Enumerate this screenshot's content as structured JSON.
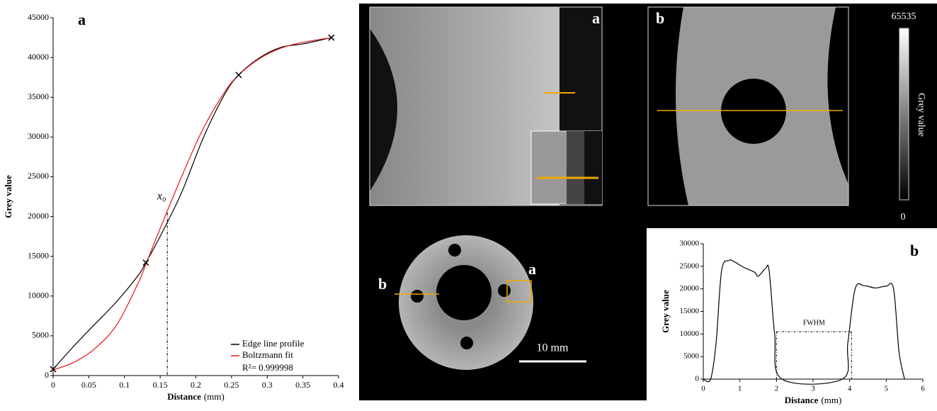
{
  "chart_data": [
    {
      "type": "line",
      "panel_label": "a",
      "xlabel": "Distance",
      "xlabel_unit": "(mm)",
      "ylabel": "Grey value",
      "x": [
        0,
        0.03,
        0.06,
        0.09,
        0.12,
        0.13,
        0.15,
        0.18,
        0.21,
        0.24,
        0.26,
        0.29,
        0.32,
        0.35,
        0.39
      ],
      "series": [
        {
          "name": "Edge line profile",
          "color": "#000000",
          "values": [
            800,
            3800,
            6600,
            9400,
            12700,
            14200,
            17500,
            23000,
            29800,
            35300,
            37800,
            40000,
            41300,
            41700,
            42500
          ]
        },
        {
          "name": "Boltzmann fit",
          "color": "#e8141b",
          "values": [
            700,
            1700,
            3500,
            6500,
            11800,
            14000,
            18500,
            25000,
            31000,
            35600,
            37800,
            39900,
            41200,
            41900,
            42500
          ]
        }
      ],
      "markers": {
        "x": [
          0,
          0.13,
          0.26,
          0.39
        ],
        "values": [
          800,
          14200,
          37800,
          42500
        ]
      },
      "fit_note": "R²= 0.999998",
      "x0_label": "x₀",
      "x0": 0.16,
      "x0_top": 20500,
      "xlim": [
        0,
        0.4
      ],
      "xticks": [
        0,
        0.05,
        0.1,
        0.15,
        0.2,
        0.25,
        0.3,
        0.35,
        0.4
      ],
      "ylim": [
        0,
        45000
      ],
      "yticks": [
        0,
        5000,
        10000,
        15000,
        20000,
        25000,
        30000,
        35000,
        40000,
        45000
      ]
    },
    {
      "type": "line",
      "panel_label": "b",
      "xlabel": "Distance",
      "xlabel_unit": "(mm)",
      "ylabel": "Grey value",
      "x": [
        0,
        0.2,
        0.35,
        0.5,
        0.7,
        0.85,
        1.1,
        1.4,
        1.5,
        1.7,
        1.8,
        1.95,
        2.15,
        3.8,
        3.95,
        4.15,
        4.4,
        4.7,
        5.0,
        5.2,
        5.35,
        5.5
      ],
      "series": [
        {
          "name": null,
          "color": "#000000",
          "values": [
            0,
            0,
            8000,
            24000,
            26300,
            26000,
            24800,
            23700,
            22800,
            24500,
            24000,
            10000,
            0,
            0,
            8000,
            20000,
            20700,
            20200,
            20600,
            20000,
            6000,
            0
          ]
        }
      ],
      "fwhm_label": "FWHM",
      "fwhm_y": 10500,
      "fwhm_x": [
        2,
        4.05
      ],
      "xlim": [
        0,
        6
      ],
      "xticks": [
        0,
        1,
        2,
        3,
        4,
        5,
        6
      ],
      "ylim": [
        0,
        30000
      ],
      "yticks": [
        0,
        5000,
        10000,
        15000,
        20000,
        25000,
        30000
      ]
    }
  ],
  "images": {
    "zoom_a_label": "a",
    "zoom_b_label": "b",
    "colorbar_max": "65535",
    "colorbar_min": "0",
    "colorbar_title": "Grey value",
    "ring_label_a": "a",
    "ring_label_b": "b",
    "scale_bar": "10 mm"
  }
}
